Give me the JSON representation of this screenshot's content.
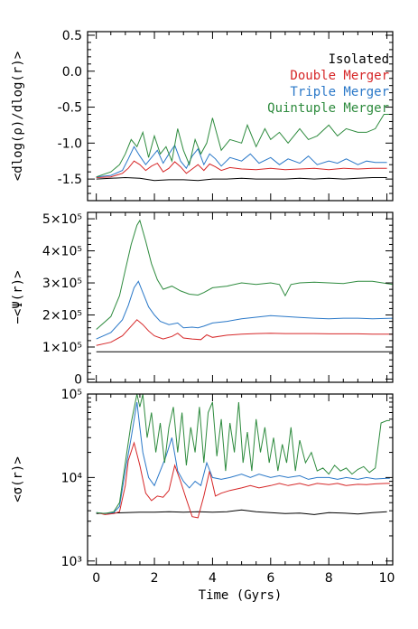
{
  "chart_data": [
    {
      "type": "line",
      "ylabel": "<dlog(ρ)/dlog(r)>",
      "xlim": [
        -0.3,
        10.2
      ],
      "ylim": [
        -1.8,
        0.55
      ],
      "yscale": "linear",
      "yticks": [
        {
          "v": 0.5,
          "label": "0.5"
        },
        {
          "v": 0.0,
          "label": "0.0"
        },
        {
          "v": -0.5,
          "label": "-0.5"
        },
        {
          "v": -1.0,
          "label": "-1.0"
        },
        {
          "v": -1.5,
          "label": "-1.5"
        }
      ],
      "yminor": [
        0.4,
        0.3,
        0.2,
        0.1,
        -0.1,
        -0.2,
        -0.3,
        -0.4,
        -0.6,
        -0.7,
        -0.8,
        -0.9,
        -1.1,
        -1.2,
        -1.3,
        -1.4,
        -1.6,
        -1.7
      ],
      "legend": {
        "placement": "top-right",
        "entries": [
          {
            "label": "Isolated",
            "color": "#000000"
          },
          {
            "label": "Double Merger",
            "color": "#d62728"
          },
          {
            "label": "Triple Merger",
            "color": "#2a78c8"
          },
          {
            "label": "Quintuple Merger",
            "color": "#2e8b3e"
          }
        ]
      },
      "series": [
        {
          "color": "#000000",
          "x": [
            0,
            0.5,
            1,
            1.5,
            2,
            2.5,
            3,
            3.5,
            4,
            4.5,
            5,
            5.5,
            6,
            6.5,
            7,
            7.5,
            8,
            8.5,
            9,
            9.5,
            10
          ],
          "y": [
            -1.5,
            -1.49,
            -1.48,
            -1.49,
            -1.52,
            -1.51,
            -1.51,
            -1.52,
            -1.5,
            -1.5,
            -1.49,
            -1.5,
            -1.5,
            -1.5,
            -1.49,
            -1.5,
            -1.49,
            -1.5,
            -1.49,
            -1.48,
            -1.48
          ]
        },
        {
          "color": "#d62728",
          "x": [
            0,
            0.5,
            0.9,
            1.1,
            1.3,
            1.5,
            1.7,
            1.9,
            2.1,
            2.3,
            2.5,
            2.7,
            2.9,
            3.1,
            3.3,
            3.5,
            3.7,
            3.9,
            4.1,
            4.3,
            4.6,
            5,
            5.5,
            6,
            6.5,
            7,
            7.5,
            8,
            8.5,
            9,
            9.5,
            10
          ],
          "y": [
            -1.48,
            -1.47,
            -1.42,
            -1.35,
            -1.25,
            -1.3,
            -1.38,
            -1.32,
            -1.28,
            -1.4,
            -1.35,
            -1.26,
            -1.33,
            -1.42,
            -1.36,
            -1.3,
            -1.38,
            -1.29,
            -1.33,
            -1.38,
            -1.34,
            -1.36,
            -1.37,
            -1.35,
            -1.37,
            -1.36,
            -1.35,
            -1.37,
            -1.35,
            -1.36,
            -1.35,
            -1.35
          ]
        },
        {
          "color": "#2a78c8",
          "x": [
            0,
            0.5,
            0.9,
            1.1,
            1.3,
            1.5,
            1.7,
            1.9,
            2.1,
            2.3,
            2.5,
            2.7,
            2.9,
            3.1,
            3.3,
            3.5,
            3.7,
            3.9,
            4.1,
            4.3,
            4.6,
            5,
            5.3,
            5.6,
            6,
            6.3,
            6.6,
            7,
            7.3,
            7.6,
            8,
            8.3,
            8.6,
            9,
            9.3,
            9.6,
            10
          ],
          "y": [
            -1.47,
            -1.45,
            -1.38,
            -1.22,
            -1.05,
            -1.18,
            -1.3,
            -1.2,
            -1.1,
            -1.28,
            -1.15,
            -1.03,
            -1.25,
            -1.35,
            -1.18,
            -1.08,
            -1.3,
            -1.15,
            -1.22,
            -1.32,
            -1.2,
            -1.25,
            -1.15,
            -1.28,
            -1.2,
            -1.3,
            -1.22,
            -1.28,
            -1.18,
            -1.3,
            -1.25,
            -1.28,
            -1.22,
            -1.3,
            -1.25,
            -1.27,
            -1.27
          ]
        },
        {
          "color": "#2e8b3e",
          "x": [
            0,
            0.5,
            0.8,
            1,
            1.2,
            1.4,
            1.6,
            1.8,
            2,
            2.2,
            2.4,
            2.6,
            2.8,
            3,
            3.2,
            3.4,
            3.6,
            3.8,
            4,
            4.3,
            4.6,
            5,
            5.2,
            5.5,
            5.8,
            6,
            6.3,
            6.6,
            7,
            7.3,
            7.6,
            8,
            8.3,
            8.6,
            9,
            9.3,
            9.6,
            9.9,
            10.1
          ],
          "y": [
            -1.47,
            -1.4,
            -1.3,
            -1.15,
            -0.95,
            -1.05,
            -0.85,
            -1.2,
            -0.9,
            -1.15,
            -1.05,
            -1.25,
            -0.8,
            -1.1,
            -1.3,
            -0.95,
            -1.15,
            -1.0,
            -0.65,
            -1.1,
            -0.95,
            -1.0,
            -0.75,
            -1.05,
            -0.8,
            -0.95,
            -0.85,
            -1.0,
            -0.8,
            -0.95,
            -0.9,
            -0.75,
            -0.9,
            -0.8,
            -0.85,
            -0.85,
            -0.8,
            -0.6,
            -0.6
          ]
        }
      ]
    },
    {
      "type": "line",
      "ylabel": "−<Ψ(r)>",
      "xlim": [
        -0.3,
        10.2
      ],
      "ylim": [
        -10000,
        520000
      ],
      "yscale": "linear",
      "yticks": [
        {
          "v": 0,
          "label": "0"
        },
        {
          "v": 100000,
          "label": "1×10⁵"
        },
        {
          "v": 200000,
          "label": "2×10⁵"
        },
        {
          "v": 300000,
          "label": "3×10⁵"
        },
        {
          "v": 400000,
          "label": "4×10⁵"
        },
        {
          "v": 500000,
          "label": "5×10⁵"
        }
      ],
      "yminor": [
        20000,
        40000,
        60000,
        80000,
        120000,
        140000,
        160000,
        180000,
        220000,
        240000,
        260000,
        280000,
        320000,
        340000,
        360000,
        380000,
        420000,
        440000,
        460000,
        480000
      ],
      "series": [
        {
          "color": "#000000",
          "x": [
            0,
            10.2
          ],
          "y": [
            85000,
            85000
          ]
        },
        {
          "color": "#d62728",
          "x": [
            0,
            0.5,
            0.9,
            1.2,
            1.4,
            1.6,
            1.8,
            2,
            2.3,
            2.6,
            2.8,
            3,
            3.3,
            3.6,
            3.8,
            4,
            4.5,
            5,
            5.5,
            6,
            6.5,
            7,
            7.5,
            8,
            8.5,
            9,
            9.5,
            10.2
          ],
          "y": [
            105000,
            115000,
            135000,
            165000,
            185000,
            170000,
            150000,
            135000,
            125000,
            133000,
            143000,
            128000,
            125000,
            123000,
            138000,
            130000,
            137000,
            140000,
            142000,
            143000,
            142000,
            142000,
            142000,
            141000,
            141000,
            141000,
            140000,
            140000
          ]
        },
        {
          "color": "#2a78c8",
          "x": [
            0,
            0.5,
            0.9,
            1.1,
            1.3,
            1.45,
            1.6,
            1.8,
            2,
            2.2,
            2.5,
            2.8,
            3,
            3.3,
            3.5,
            3.7,
            4,
            4.5,
            5,
            5.5,
            6,
            6.5,
            7,
            7.5,
            8,
            8.5,
            9,
            9.5,
            10.2
          ],
          "y": [
            125000,
            145000,
            185000,
            230000,
            285000,
            305000,
            270000,
            225000,
            200000,
            180000,
            170000,
            175000,
            160000,
            162000,
            160000,
            165000,
            175000,
            180000,
            188000,
            193000,
            198000,
            195000,
            192000,
            190000,
            188000,
            190000,
            190000,
            188000,
            190000
          ]
        },
        {
          "color": "#2e8b3e",
          "x": [
            0,
            0.5,
            0.8,
            1,
            1.2,
            1.4,
            1.5,
            1.7,
            1.9,
            2.1,
            2.3,
            2.6,
            2.9,
            3.2,
            3.5,
            3.7,
            4,
            4.5,
            5,
            5.5,
            6,
            6.3,
            6.5,
            6.7,
            7,
            7.5,
            8,
            8.5,
            9,
            9.5,
            10.2
          ],
          "y": [
            155000,
            195000,
            260000,
            340000,
            420000,
            480000,
            495000,
            430000,
            360000,
            310000,
            280000,
            290000,
            275000,
            265000,
            262000,
            270000,
            285000,
            290000,
            300000,
            295000,
            300000,
            295000,
            260000,
            295000,
            300000,
            302000,
            300000,
            298000,
            305000,
            305000,
            295000
          ]
        }
      ]
    },
    {
      "type": "line",
      "ylabel": "<σ(r)>",
      "xlabel": "Time (Gyrs)",
      "xlim": [
        -0.3,
        10.2
      ],
      "ylim": [
        900,
        100000
      ],
      "yscale": "log",
      "yticks": [
        {
          "v": 1000,
          "label": "10³"
        },
        {
          "v": 10000,
          "label": "10⁴"
        },
        {
          "v": 100000,
          "label": "10⁵"
        }
      ],
      "yminor": [
        2000,
        3000,
        4000,
        5000,
        6000,
        7000,
        8000,
        9000,
        20000,
        30000,
        40000,
        50000,
        60000,
        70000,
        80000,
        90000
      ],
      "xticks": [
        {
          "v": 0,
          "label": "0"
        },
        {
          "v": 2,
          "label": "2"
        },
        {
          "v": 4,
          "label": "4"
        },
        {
          "v": 6,
          "label": "6"
        },
        {
          "v": 8,
          "label": "8"
        },
        {
          "v": 10,
          "label": "10"
        }
      ],
      "series": [
        {
          "color": "#000000",
          "x": [
            0,
            0.5,
            1,
            1.5,
            2,
            2.5,
            3,
            3.5,
            4,
            4.5,
            5,
            5.5,
            6,
            6.5,
            7,
            7.5,
            8,
            8.5,
            9,
            9.5,
            10
          ],
          "y": [
            3700,
            3750,
            3800,
            3850,
            3850,
            3900,
            3850,
            3900,
            3850,
            3900,
            4100,
            3900,
            3800,
            3700,
            3750,
            3600,
            3800,
            3750,
            3650,
            3800,
            3900
          ]
        },
        {
          "color": "#d62728",
          "x": [
            0,
            0.3,
            0.6,
            0.8,
            1,
            1.1,
            1.3,
            1.5,
            1.7,
            1.9,
            2.1,
            2.3,
            2.5,
            2.7,
            2.9,
            3.1,
            3.3,
            3.5,
            3.7,
            3.9,
            4.1,
            4.3,
            4.6,
            5,
            5.3,
            5.6,
            6,
            6.3,
            6.6,
            7,
            7.3,
            7.6,
            8,
            8.3,
            8.6,
            9,
            9.3,
            9.6,
            10,
            10.1
          ],
          "y": [
            3800,
            3600,
            3700,
            3900,
            8000,
            16000,
            26000,
            14000,
            6500,
            5300,
            6000,
            5800,
            7000,
            14000,
            9000,
            5500,
            3400,
            3300,
            6000,
            12000,
            6000,
            6500,
            7000,
            7500,
            8000,
            7500,
            8000,
            8500,
            8000,
            8500,
            8000,
            8500,
            8200,
            8500,
            8000,
            8300,
            8200,
            8400,
            8500,
            8500
          ]
        },
        {
          "color": "#2a78c8",
          "x": [
            0,
            0.3,
            0.6,
            0.8,
            1,
            1.2,
            1.4,
            1.5,
            1.6,
            1.8,
            2,
            2.2,
            2.4,
            2.6,
            2.8,
            3,
            3.2,
            3.4,
            3.6,
            3.8,
            4,
            4.3,
            4.6,
            5,
            5.3,
            5.6,
            6,
            6.3,
            6.6,
            7,
            7.3,
            7.6,
            8,
            8.3,
            8.6,
            9,
            9.3,
            9.6,
            10,
            10.1
          ],
          "y": [
            3800,
            3700,
            3800,
            4500,
            12000,
            30000,
            80000,
            40000,
            20000,
            10000,
            8000,
            12000,
            18000,
            30000,
            12000,
            9000,
            7500,
            9000,
            8000,
            15000,
            10000,
            9500,
            10000,
            11000,
            10000,
            11000,
            10000,
            10500,
            10000,
            10500,
            9500,
            10000,
            10000,
            9500,
            10000,
            9500,
            10000,
            9600,
            9800,
            9800
          ]
        },
        {
          "color": "#2e8b3e",
          "x": [
            0,
            0.3,
            0.6,
            0.8,
            1,
            1.2,
            1.4,
            1.5,
            1.6,
            1.75,
            1.9,
            2.05,
            2.2,
            2.35,
            2.5,
            2.65,
            2.8,
            2.95,
            3.1,
            3.25,
            3.4,
            3.55,
            3.7,
            3.85,
            4,
            4.15,
            4.3,
            4.45,
            4.6,
            4.75,
            4.9,
            5.05,
            5.2,
            5.35,
            5.5,
            5.65,
            5.8,
            5.95,
            6.1,
            6.25,
            6.4,
            6.55,
            6.7,
            6.85,
            7,
            7.2,
            7.4,
            7.6,
            7.8,
            8,
            8.2,
            8.4,
            8.6,
            8.8,
            9,
            9.2,
            9.4,
            9.6,
            9.8,
            10,
            10.1
          ],
          "y": [
            3800,
            3700,
            3900,
            5000,
            15000,
            45000,
            100000,
            70000,
            100000,
            30000,
            60000,
            20000,
            45000,
            15000,
            40000,
            70000,
            20000,
            60000,
            14000,
            40000,
            20000,
            70000,
            15000,
            60000,
            80000,
            18000,
            50000,
            12000,
            45000,
            20000,
            80000,
            15000,
            35000,
            12000,
            50000,
            20000,
            40000,
            15000,
            30000,
            12000,
            25000,
            15000,
            40000,
            12000,
            28000,
            15000,
            20000,
            12000,
            13000,
            11000,
            14000,
            12000,
            13000,
            11000,
            12500,
            13500,
            11500,
            13000,
            45000,
            48000,
            48000
          ]
        }
      ]
    }
  ]
}
